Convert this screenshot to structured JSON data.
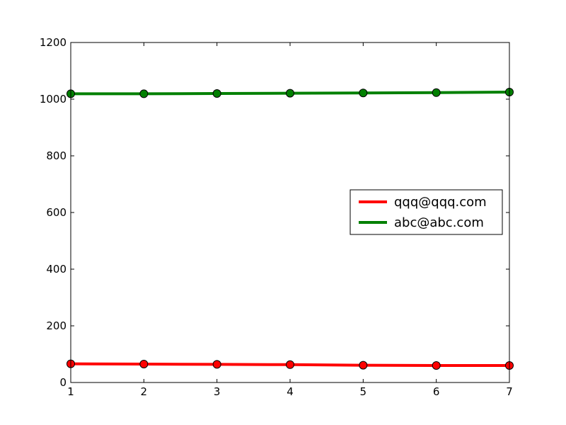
{
  "chart_data": {
    "type": "line",
    "title": "",
    "xlabel": "",
    "ylabel": "",
    "x": [
      1,
      2,
      3,
      4,
      5,
      6,
      7
    ],
    "xlim": [
      1,
      7
    ],
    "ylim": [
      0,
      1200
    ],
    "xticks": [
      1,
      2,
      3,
      4,
      5,
      6,
      7
    ],
    "yticks": [
      0,
      200,
      400,
      600,
      800,
      1000,
      1200
    ],
    "grid": false,
    "legend_position": "center-right",
    "series": [
      {
        "name": "qqq@qqq.com",
        "color": "#ff0000",
        "values": [
          66,
          65,
          64,
          63,
          61,
          60,
          60
        ]
      },
      {
        "name": "abc@abc.com",
        "color": "#008000",
        "values": [
          1019,
          1019,
          1020,
          1021,
          1022,
          1023,
          1025
        ]
      }
    ]
  }
}
